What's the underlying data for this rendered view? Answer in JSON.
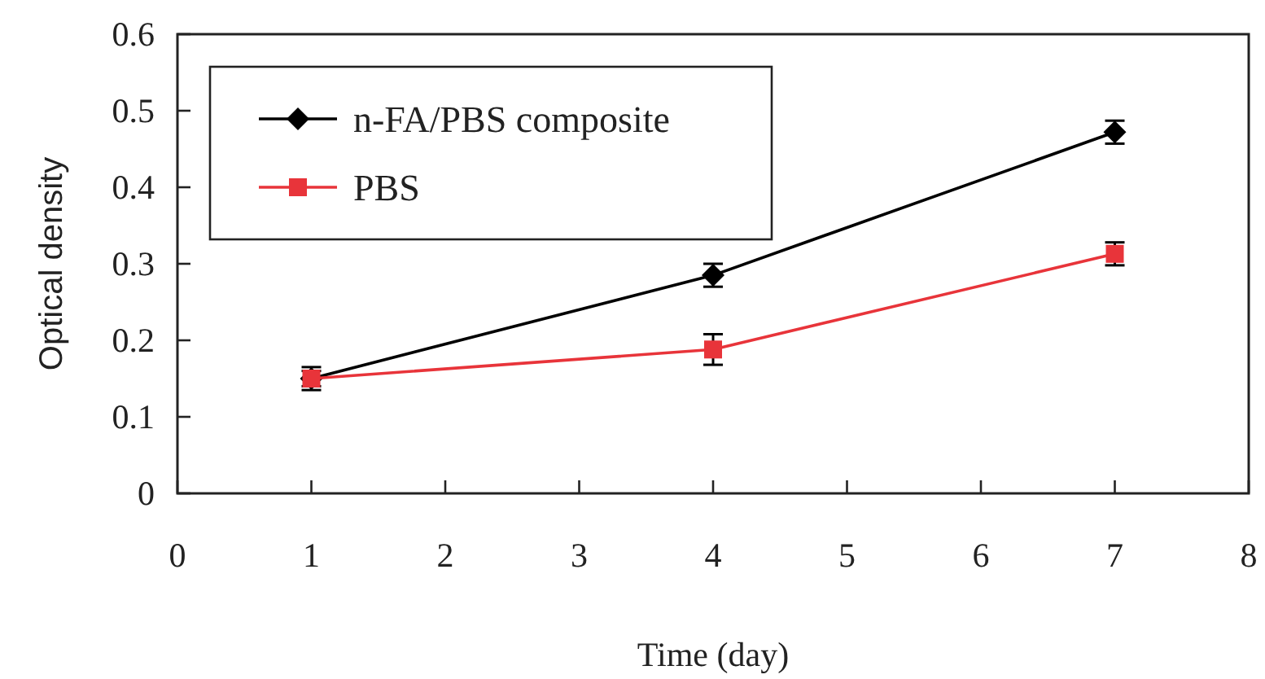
{
  "chart_data": {
    "type": "line",
    "xlabel": "Time (day)",
    "ylabel": "Optical density",
    "xlim": [
      0,
      8
    ],
    "xticks": [
      0,
      1,
      2,
      3,
      4,
      5,
      6,
      7,
      8
    ],
    "ylim": [
      0,
      0.6
    ],
    "yticks": [
      0,
      0.1,
      0.2,
      0.3,
      0.4,
      0.5,
      0.6
    ],
    "x": [
      1,
      4,
      7
    ],
    "legend": "top left",
    "grid": false,
    "series": [
      {
        "name": "n-FA/PBS composite",
        "color": "#000000",
        "marker": "diamond",
        "values": [
          0.15,
          0.285,
          0.472
        ],
        "errors": [
          0.01,
          0.015,
          0.015
        ]
      },
      {
        "name": "PBS",
        "color": "#e8343a",
        "marker": "square",
        "values": [
          0.15,
          0.188,
          0.313
        ],
        "errors": [
          0.015,
          0.02,
          0.015
        ]
      }
    ]
  }
}
